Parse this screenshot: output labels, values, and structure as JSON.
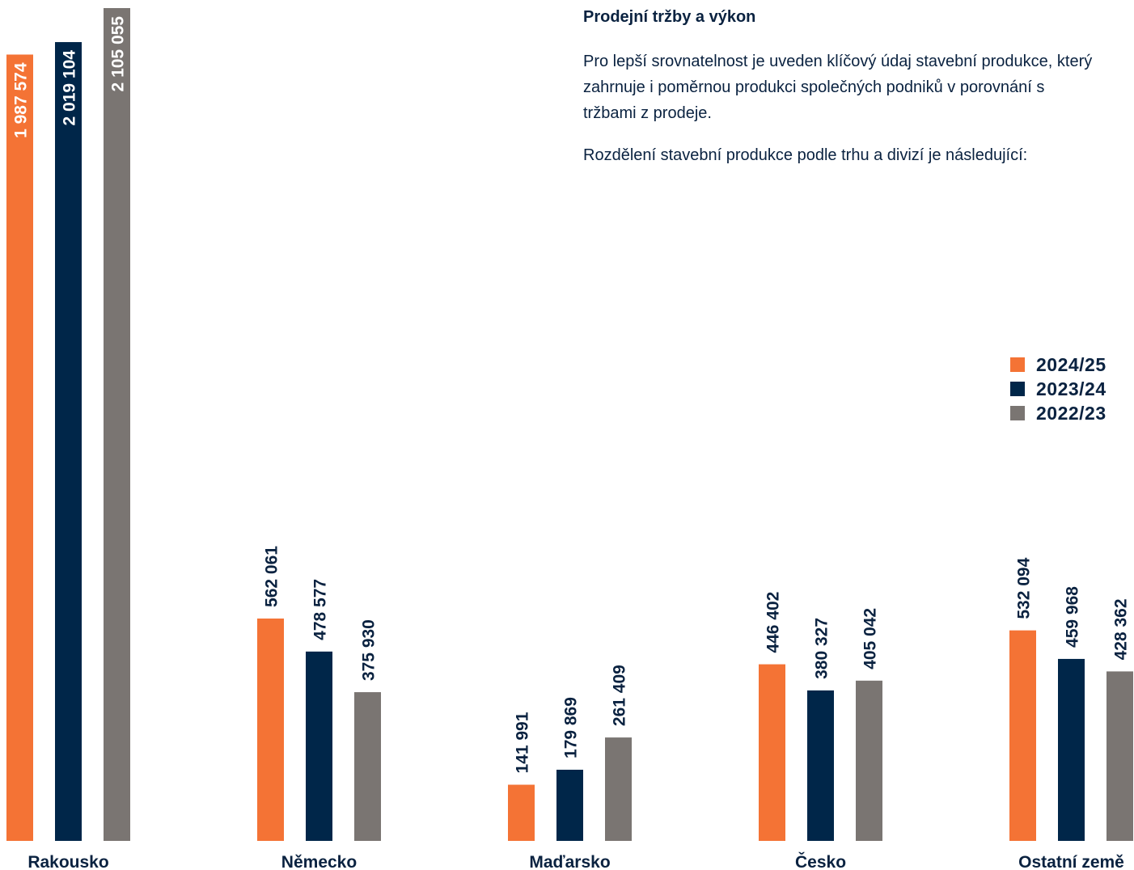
{
  "intro": {
    "heading": "Prodejní tržby a výkon",
    "paragraph1": "Pro lepší srovnatelnost je uveden klíčový údaj stavební produkce, který zahrnuje i poměrnou produkci společných podniků v porovnání s tržbami z prodeje.",
    "paragraph2": "Rozdělení stavební produkce podle trhu a divizí je následující:"
  },
  "colors": {
    "s2024": "#f47335",
    "s2023": "#002649",
    "s2022": "#7a7572",
    "text": "#0a2240"
  },
  "chart_data": {
    "type": "bar",
    "categories": [
      "Rakousko",
      "Německo",
      "Maďarsko",
      "Česko",
      "Ostatní země"
    ],
    "series": [
      {
        "name": "2024/25",
        "values": [
          1987574,
          562061,
          141991,
          446402,
          532094
        ],
        "labels": [
          "1 987 574",
          "562 061",
          "141 991",
          "446 402",
          "532 094"
        ]
      },
      {
        "name": "2023/24",
        "values": [
          2019104,
          478577,
          179869,
          380327,
          459968
        ],
        "labels": [
          "2 019 104",
          "478 577",
          "179 869",
          "380 327",
          "459 968"
        ]
      },
      {
        "name": "2022/23",
        "values": [
          2105055,
          375930,
          261409,
          405042,
          428362
        ],
        "labels": [
          "2 105 055",
          "375 930",
          "261 409",
          "405 042",
          "428 362"
        ]
      }
    ],
    "legend": [
      "2024/25",
      "2023/24",
      "2022/23"
    ],
    "legend_position": "right",
    "title": "",
    "xlabel": "",
    "ylabel": "",
    "ylim": [
      0,
      2105055
    ],
    "grid": false,
    "value_labels": "vertical, above bar (inside top for Rakousko)"
  }
}
